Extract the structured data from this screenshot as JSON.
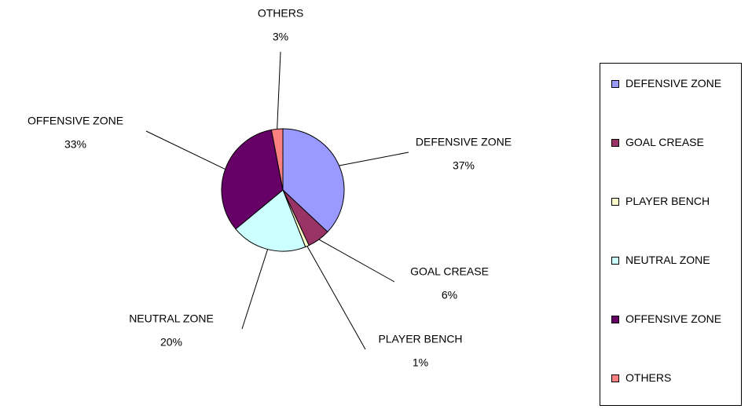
{
  "chart_data": {
    "type": "pie",
    "categories": [
      "DEFENSIVE ZONE",
      "GOAL CREASE",
      "PLAYER BENCH",
      "NEUTRAL ZONE",
      "OFFENSIVE ZONE",
      "OTHERS"
    ],
    "values": [
      37,
      6,
      1,
      20,
      33,
      3
    ],
    "value_labels": [
      "37%",
      "6%",
      "1%",
      "20%",
      "33%",
      "3%"
    ],
    "colors": [
      "#9999ff",
      "#993366",
      "#ffffcc",
      "#ccffff",
      "#660066",
      "#ff8080"
    ],
    "legend": "right"
  }
}
